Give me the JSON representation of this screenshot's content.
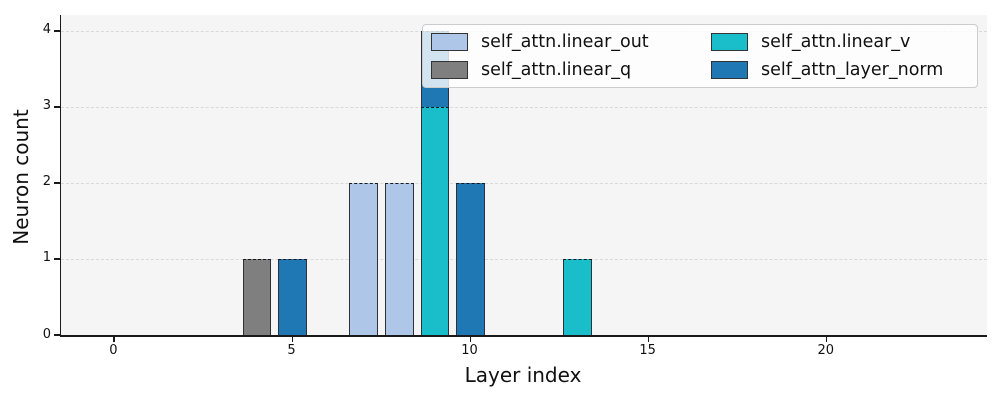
{
  "figure": {
    "background": "#ffffff",
    "plot_background": "#f5f5f6",
    "grid_color": "#d9d9d9",
    "axis_color": "#1a1a1a",
    "bar_edge_color": "#2e3238",
    "legend_border_color": "#cccccc"
  },
  "chart_data": {
    "type": "bar",
    "stacked": true,
    "title": "",
    "xlabel": "Layer index",
    "ylabel": "Neuron count",
    "xlim": [
      -1.5,
      24.5
    ],
    "ylim": [
      0,
      4.21
    ],
    "xticks": [
      0,
      5,
      10,
      15,
      20
    ],
    "yticks": [
      0,
      1,
      2,
      3,
      4
    ],
    "grid": "horizontal-dashed",
    "legend_position": "upper-right",
    "bar_width": 0.8,
    "series_colors": {
      "self_attn.linear_out": "#aec7e8",
      "self_attn.linear_q": "#7f7f7f",
      "self_attn.linear_v": "#1abecb",
      "self_attn_layer_norm": "#1f77b4"
    },
    "bars": [
      {
        "x": 4,
        "segments": [
          {
            "series": "self_attn.linear_q",
            "value": 1
          }
        ]
      },
      {
        "x": 5,
        "segments": [
          {
            "series": "self_attn_layer_norm",
            "value": 1
          }
        ]
      },
      {
        "x": 7,
        "segments": [
          {
            "series": "self_attn.linear_out",
            "value": 2
          }
        ]
      },
      {
        "x": 8,
        "segments": [
          {
            "series": "self_attn.linear_out",
            "value": 2
          }
        ]
      },
      {
        "x": 9,
        "segments": [
          {
            "series": "self_attn.linear_v",
            "value": 3
          },
          {
            "series": "self_attn_layer_norm",
            "value": 1
          }
        ]
      },
      {
        "x": 10,
        "segments": [
          {
            "series": "self_attn_layer_norm",
            "value": 2
          }
        ]
      },
      {
        "x": 13,
        "segments": [
          {
            "series": "self_attn.linear_v",
            "value": 1
          }
        ]
      }
    ],
    "legend": {
      "columns": 2,
      "items": [
        {
          "label": "self_attn.linear_out",
          "color": "#aec7e8"
        },
        {
          "label": "self_attn.linear_v",
          "color": "#1abecb"
        },
        {
          "label": "self_attn.linear_q",
          "color": "#7f7f7f"
        },
        {
          "label": "self_attn_layer_norm",
          "color": "#1f77b4"
        }
      ]
    }
  }
}
